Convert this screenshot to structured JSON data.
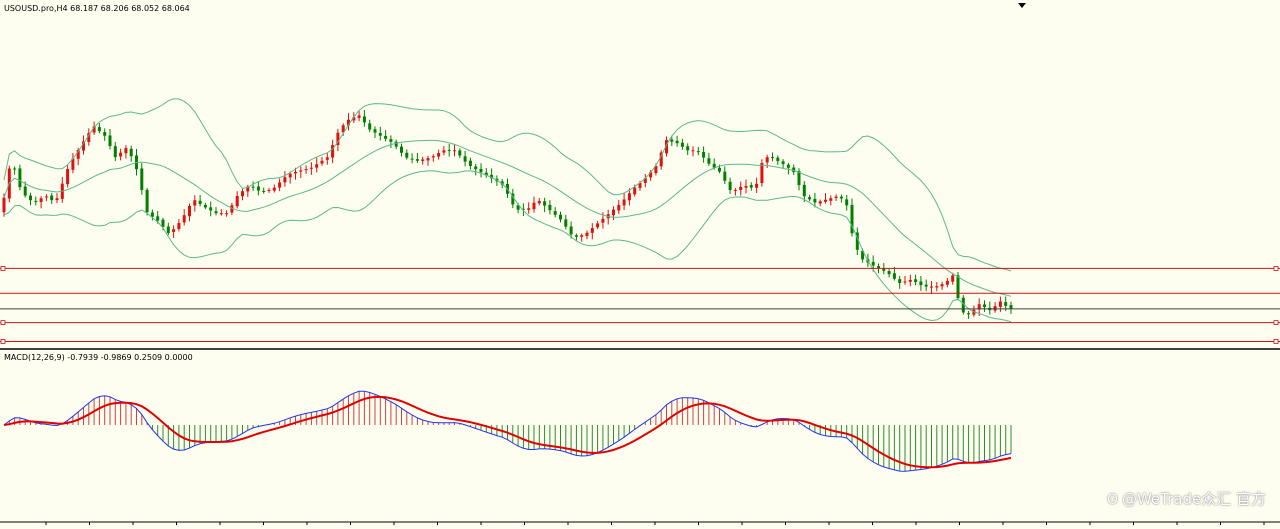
{
  "chart_header": {
    "main_title": "USOUSD.pro,H4  68.187 68.206 68.052 68.064",
    "macd_title": "MACD(12,26,9) -0.7939 -0.9869 0.2509 0.0000"
  },
  "watermark": {
    "icon": "weibo-style-logo-icon",
    "text": "@WeTrade众汇 官方"
  },
  "colors": {
    "background": "#fefef0",
    "bull_candle": "#e01010",
    "bear_candle": "#008000",
    "bollinger": "#5cb88a",
    "level_line": "#d01010",
    "price_line": "#404040",
    "macd_hist_pos": "#d04040",
    "macd_hist_neg": "#2e8b2e",
    "macd_main": "#2233ee",
    "macd_signal": "#e00000"
  },
  "chart_data": [
    {
      "type": "candlestick",
      "symbol": "USOUSD.pro",
      "timeframe": "H4",
      "ohlc_last": {
        "open": 68.187,
        "high": 68.206,
        "low": 68.052,
        "close": 68.064
      },
      "y_range": [
        67.0,
        76.5
      ],
      "overlays": [
        "bollinger_bands"
      ],
      "horizontal_levels": [
        69.22,
        68.51,
        67.67,
        67.13
      ],
      "current_price": 68.064,
      "grid": false
    },
    {
      "type": "macd",
      "params": [
        12,
        26,
        9
      ],
      "values": {
        "main": -0.7939,
        "signal": -0.9869,
        "histogram": 0.2509,
        "extra": 0.0
      },
      "series": [
        "histogram",
        "main",
        "signal"
      ],
      "grid": false
    }
  ]
}
